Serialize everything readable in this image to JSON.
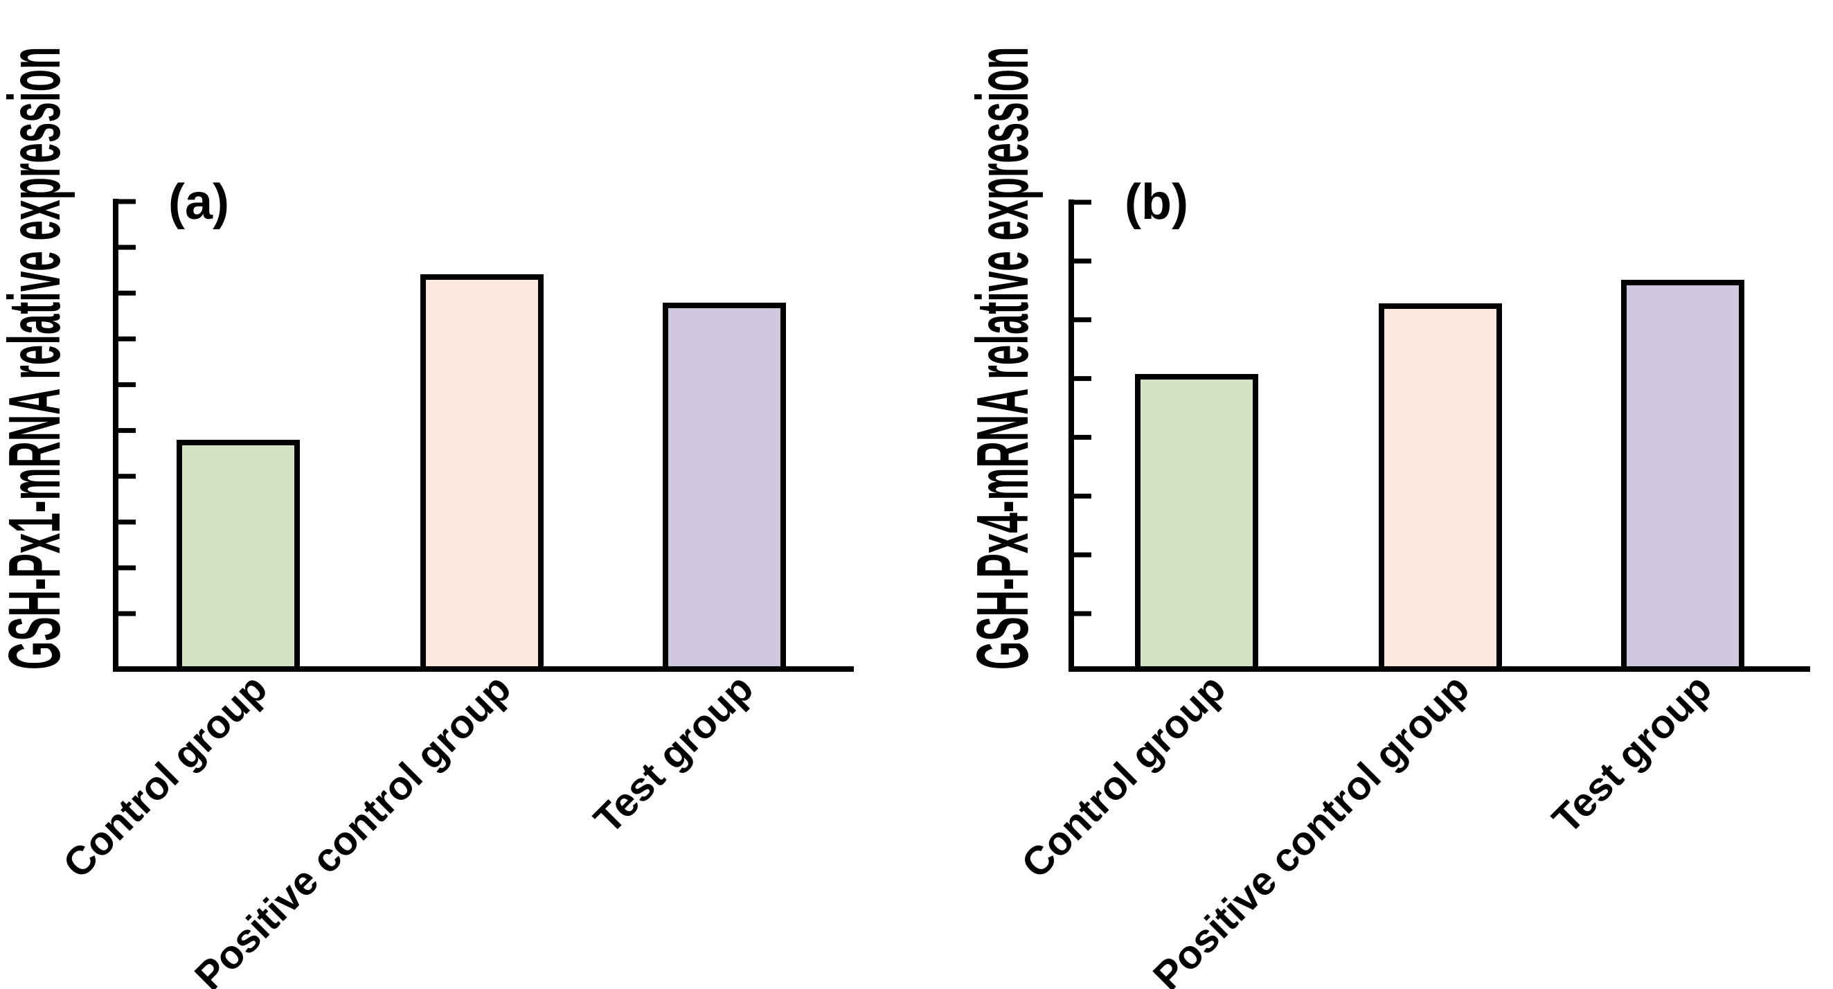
{
  "figure": {
    "background_color": "#ffffff",
    "text_color": "#000000",
    "axis_color": "#000000"
  },
  "chart_data": [
    {
      "type": "bar",
      "panel_label": "(a)",
      "ylabel": "GSH-Px1-mRNA relative expression",
      "xlabel": "",
      "categories": [
        "Control group",
        "Positive control group",
        "Test group"
      ],
      "values": [
        0.49,
        0.84,
        0.78
      ],
      "ylim": [
        0,
        1
      ],
      "y_tick_count": 10,
      "y_tick_labels": [],
      "bar_colors": [
        "#d3e3c6",
        "#fce8dc",
        "#d1c7df"
      ],
      "bar_edge_color": "#000000",
      "grid": false,
      "legend": false,
      "x_tick_label_rotation_deg": 45
    },
    {
      "type": "bar",
      "panel_label": "(b)",
      "ylabel": "GSH-Px4-mRNA relative expression",
      "xlabel": "",
      "categories": [
        "Control group",
        "Positive control group",
        "Test group"
      ],
      "values": [
        0.63,
        0.78,
        0.83
      ],
      "ylim": [
        0,
        1
      ],
      "y_tick_count": 8,
      "y_tick_labels": [],
      "bar_colors": [
        "#d3e3c6",
        "#fce8dc",
        "#d1c7df"
      ],
      "bar_edge_color": "#000000",
      "grid": false,
      "legend": false,
      "x_tick_label_rotation_deg": 45
    }
  ]
}
